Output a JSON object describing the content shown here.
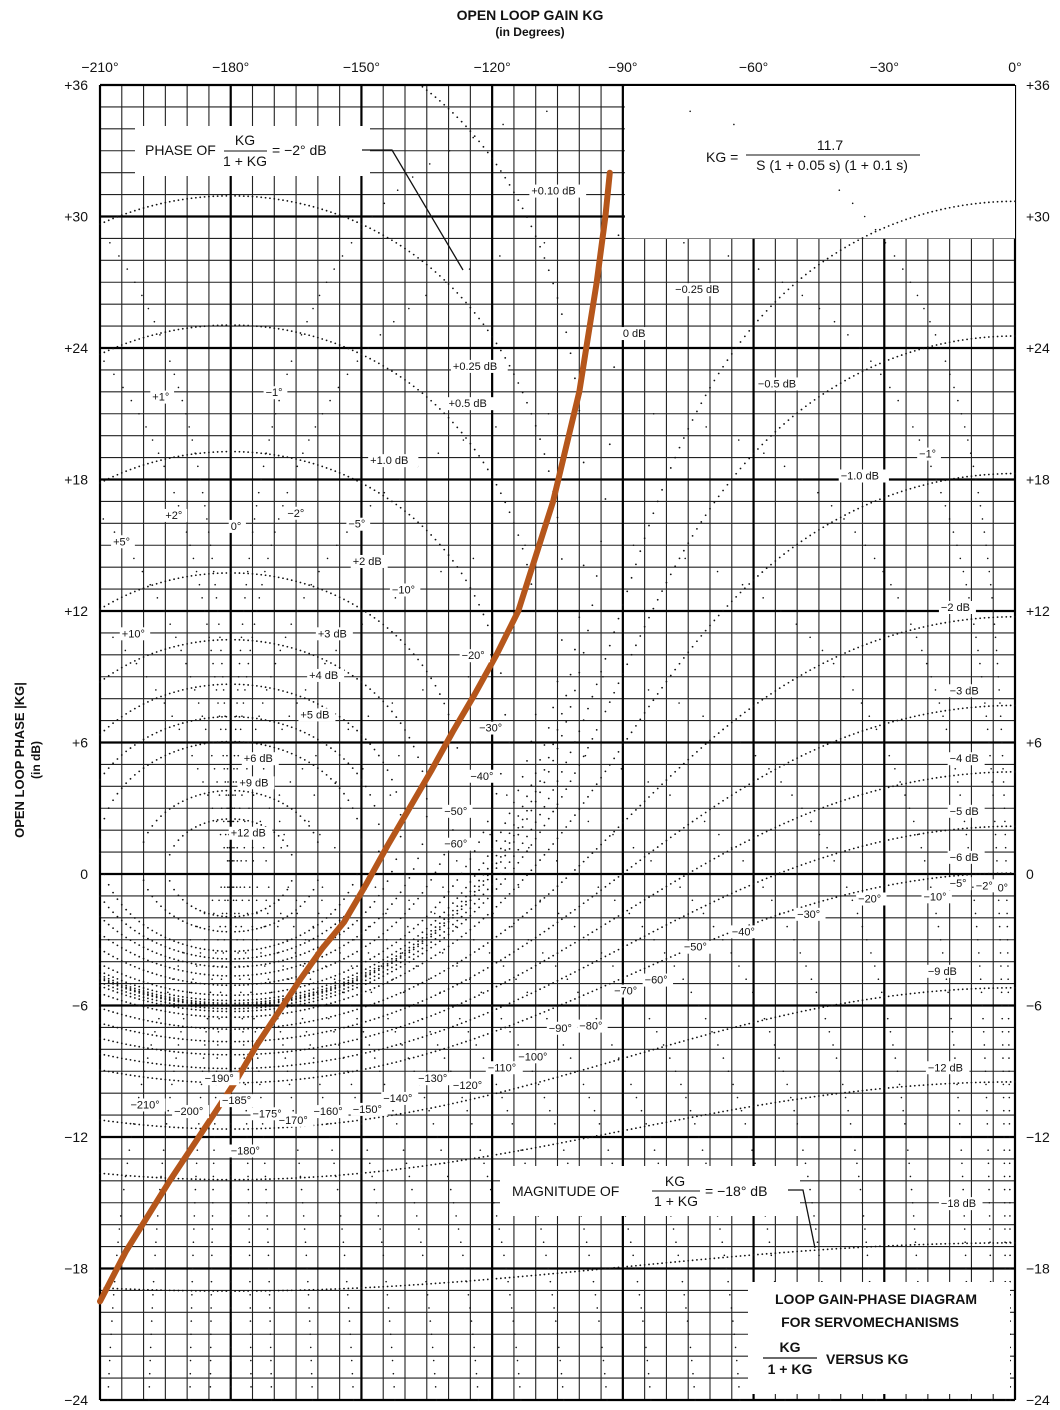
{
  "chart_data": {
    "type": "line",
    "title": "OPEN LOOP GAIN KG",
    "subtitle": "(in Degrees)",
    "ylabel": "OPEN LOOP PHASE |KG|",
    "ylabel_unit": "(in dB)",
    "x_ticks": [
      "−210°",
      "−180°",
      "−150°",
      "−120°",
      "−90°",
      "−60°",
      "−30°",
      "0°"
    ],
    "x_tick_values": [
      -210,
      -180,
      -150,
      -120,
      -90,
      -60,
      -30,
      0
    ],
    "y_ticks_left": [
      "+36",
      "+30",
      "+24",
      "+18",
      "+12",
      "+6",
      "0",
      "−6",
      "−12",
      "−18",
      "−24"
    ],
    "y_ticks_right": [
      "+36",
      "+30",
      "+24",
      "+18",
      "+12",
      "+6",
      "0",
      "−6",
      "−12",
      "−18",
      "−24"
    ],
    "y_tick_values": [
      36,
      30,
      24,
      18,
      12,
      6,
      0,
      -6,
      -12,
      -18,
      -24
    ],
    "xlim": [
      -210,
      0
    ],
    "ylim": [
      -24,
      36
    ],
    "grid": true,
    "series": [
      {
        "color": "#b5561b",
        "x": [
          -93,
          -94,
          -96,
          -98,
          -100,
          -103,
          -106,
          -110,
          -114,
          -119,
          -124,
          -129,
          -134,
          -139,
          -144,
          -149,
          -154,
          -159,
          -164,
          -169,
          -174,
          -179,
          -184,
          -189,
          -194,
          -199,
          -204,
          -210
        ],
        "y": [
          32.0,
          30.0,
          27.0,
          24.5,
          22.0,
          19.5,
          17.0,
          14.5,
          12.0,
          10.0,
          8.2,
          6.5,
          4.7,
          3.0,
          1.3,
          -0.5,
          -2.2,
          -3.4,
          -4.8,
          -6.3,
          -7.8,
          -9.5,
          -11.0,
          -12.5,
          -14.0,
          -15.6,
          -17.2,
          -19.5
        ]
      }
    ],
    "magnitude_contours": [
      {
        "label": "+0.10 dB",
        "lx": -111,
        "ly": 31.0
      },
      {
        "label": "0 dB",
        "lx": -90,
        "ly": 24.5
      },
      {
        "label": "−0.25 dB",
        "lx": -78,
        "ly": 26.5
      },
      {
        "label": "+0.25 dB",
        "lx": -129,
        "ly": 23.0
      },
      {
        "label": "+0.5 dB",
        "lx": -130,
        "ly": 21.3
      },
      {
        "label": "−0.5 dB",
        "lx": -59,
        "ly": 22.2
      },
      {
        "label": "+1.0 dB",
        "lx": -148,
        "ly": 18.7
      },
      {
        "label": "−1.0 dB",
        "lx": -40,
        "ly": 18.0
      },
      {
        "label": "+2 dB",
        "lx": -152,
        "ly": 14.1
      },
      {
        "label": "−2 dB",
        "lx": -17,
        "ly": 12.0
      },
      {
        "label": "+3 dB",
        "lx": -160,
        "ly": 10.8
      },
      {
        "label": "−3 dB",
        "lx": -15,
        "ly": 8.2
      },
      {
        "label": "+4 dB",
        "lx": -162,
        "ly": 8.9
      },
      {
        "label": "−4 dB",
        "lx": -15,
        "ly": 5.1
      },
      {
        "label": "+5 dB",
        "lx": -164,
        "ly": 7.1
      },
      {
        "label": "−5 dB",
        "lx": -15,
        "ly": 2.7
      },
      {
        "label": "+6 dB",
        "lx": -177,
        "ly": 5.1
      },
      {
        "label": "−6 dB",
        "lx": -15,
        "ly": 0.6
      },
      {
        "label": "+9 dB",
        "lx": -178,
        "ly": 4.0
      },
      {
        "label": "+12 dB",
        "lx": -180,
        "ly": 1.7
      },
      {
        "label": "−9 dB",
        "lx": -20,
        "ly": -4.6
      },
      {
        "label": "−12 dB",
        "lx": -20,
        "ly": -9.0
      },
      {
        "label": "−18 dB",
        "lx": -17,
        "ly": -15.2
      }
    ],
    "phase_contours": [
      {
        "label": "+1°",
        "lx": -198,
        "ly": 21.6
      },
      {
        "label": "−1°",
        "lx": -172,
        "ly": 21.8
      },
      {
        "label": "−1°",
        "lx": -22,
        "ly": 19.0
      },
      {
        "label": "+2°",
        "lx": -195,
        "ly": 16.2
      },
      {
        "label": "0°",
        "lx": -180,
        "ly": 15.7
      },
      {
        "label": "−2°",
        "lx": -167,
        "ly": 16.3
      },
      {
        "label": "+5°",
        "lx": -207,
        "ly": 15.0
      },
      {
        "label": "−5°",
        "lx": -153,
        "ly": 15.8
      },
      {
        "label": "−10°",
        "lx": -143,
        "ly": 12.8
      },
      {
        "label": "+10°",
        "lx": -205,
        "ly": 10.8
      },
      {
        "label": "−20°",
        "lx": -127,
        "ly": 9.8
      },
      {
        "label": "−30°",
        "lx": -123,
        "ly": 6.5
      },
      {
        "label": "−40°",
        "lx": -125,
        "ly": 4.3
      },
      {
        "label": "−50°",
        "lx": -131,
        "ly": 2.7
      },
      {
        "label": "−60°",
        "lx": -131,
        "ly": 1.2
      },
      {
        "label": "−185°",
        "lx": -182,
        "ly": -10.5
      },
      {
        "label": "−180°",
        "lx": -180,
        "ly": -12.8
      },
      {
        "label": "−190°",
        "lx": -186,
        "ly": -9.5
      },
      {
        "label": "−200°",
        "lx": -193,
        "ly": -11.0
      },
      {
        "label": "−210°",
        "lx": -203,
        "ly": -10.7
      },
      {
        "label": "−175°",
        "lx": -175,
        "ly": -11.1
      },
      {
        "label": "−170°",
        "lx": -169,
        "ly": -11.4
      },
      {
        "label": "−160°",
        "lx": -161,
        "ly": -11.0
      },
      {
        "label": "−150°",
        "lx": -152,
        "ly": -10.9
      },
      {
        "label": "−140°",
        "lx": -145,
        "ly": -10.4
      },
      {
        "label": "−130°",
        "lx": -137,
        "ly": -9.5
      },
      {
        "label": "−120°",
        "lx": -129,
        "ly": -9.8
      },
      {
        "label": "−110°",
        "lx": -121,
        "ly": -9.0
      },
      {
        "label": "−100°",
        "lx": -114,
        "ly": -8.5
      },
      {
        "label": "−90°",
        "lx": -107,
        "ly": -7.2
      },
      {
        "label": "−80°",
        "lx": -100,
        "ly": -7.1
      },
      {
        "label": "−70°",
        "lx": -92,
        "ly": -5.5
      },
      {
        "label": "−60°",
        "lx": -85,
        "ly": -5.0
      },
      {
        "label": "−50°",
        "lx": -76,
        "ly": -3.5
      },
      {
        "label": "−40°",
        "lx": -65,
        "ly": -2.8
      },
      {
        "label": "−30°",
        "lx": -50,
        "ly": -2.0
      },
      {
        "label": "−20°",
        "lx": -36,
        "ly": -1.3
      },
      {
        "label": "−10°",
        "lx": -21,
        "ly": -1.2
      },
      {
        "label": "−5°",
        "lx": -15,
        "ly": -0.6
      },
      {
        "label": "−2°",
        "lx": -9,
        "ly": -0.7
      },
      {
        "label": "0°",
        "lx": -4,
        "ly": -0.8
      }
    ],
    "annotations": {
      "phase_note": {
        "prefix": "PHASE OF",
        "num": "KG",
        "den": "1 + KG",
        "suffix": "= −2° dB"
      },
      "magnitude_note": {
        "prefix": "MAGNITUDE OF",
        "num": "KG",
        "den": "1 + KG",
        "suffix": "= −18° dB"
      },
      "formula": {
        "lhs": "KG =",
        "num": "11.7",
        "den": "S (1 + 0.05 s) (1 + 0.1 s)"
      },
      "legend_title_1": "LOOP GAIN-PHASE DIAGRAM",
      "legend_title_2": "FOR SERVOMECHANISMS",
      "legend_num": "KG",
      "legend_den": "1 + KG",
      "legend_suffix": "VERSUS KG"
    }
  }
}
